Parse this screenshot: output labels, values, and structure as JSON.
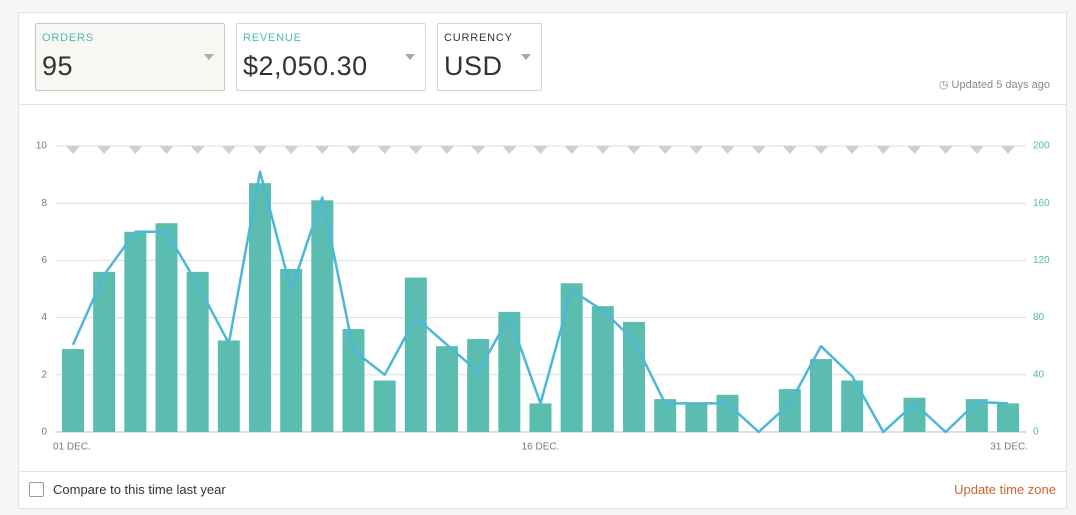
{
  "header": {
    "cards": [
      {
        "label": "ORDERS",
        "value": "95"
      },
      {
        "label": "REVENUE",
        "value": "$2,050.30"
      },
      {
        "label": "CURRENCY",
        "value": "USD"
      }
    ],
    "updated": "Updated 5 days ago"
  },
  "footer": {
    "compare": "Compare to this time last year",
    "update_tz": "Update time zone"
  },
  "chart_data": {
    "type": "bar-line",
    "categories": [
      "01 DEC.",
      null,
      null,
      null,
      null,
      null,
      null,
      null,
      null,
      null,
      null,
      null,
      null,
      null,
      null,
      "16 DEC.",
      null,
      null,
      null,
      null,
      null,
      null,
      null,
      null,
      null,
      null,
      null,
      null,
      null,
      null,
      "31 DEC."
    ],
    "series": [
      {
        "name": "Orders",
        "color": "#5bbcb0",
        "axis": "y",
        "values": [
          2.9,
          5.6,
          7.0,
          7.3,
          5.6,
          3.2,
          8.7,
          5.7,
          8.1,
          3.6,
          1.8,
          5.4,
          3.0,
          3.25,
          4.2,
          1.0,
          5.2,
          4.4,
          3.85,
          1.15,
          1.0,
          1.3,
          0,
          1.5,
          2.55,
          1.8,
          0,
          1.2,
          0,
          1.15,
          1.0
        ]
      },
      {
        "name": "Revenue",
        "color": "#4bb8d9",
        "axis": "y2",
        "values": [
          61,
          110,
          140,
          140,
          103,
          62,
          182,
          99,
          164,
          57,
          40,
          80,
          61,
          42,
          81,
          20,
          99,
          85,
          64,
          20,
          20,
          20,
          0,
          20,
          60,
          39,
          0,
          20,
          0,
          21,
          20
        ]
      }
    ],
    "ylim": [
      0,
      10
    ],
    "yticks": [
      0,
      2,
      4,
      6,
      8,
      10
    ],
    "y2lim": [
      0,
      200
    ],
    "y2ticks": [
      0,
      40,
      80,
      120,
      160,
      200
    ],
    "grid": true
  }
}
